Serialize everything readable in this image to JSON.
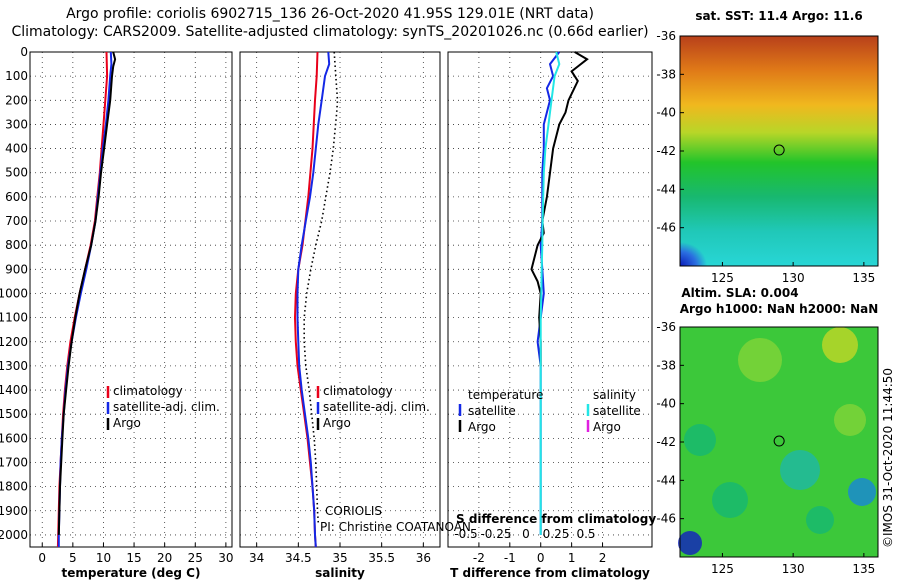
{
  "header": {
    "line1": "Argo profile: coriolis 6902715_136 26-Oct-2020 41.95S 129.01E (NRT data)",
    "line2": "Climatology: CARS2009. Satellite-adjusted climatology: synTS_20201026.nc (0.66d earlier)"
  },
  "colors": {
    "red": "#e8001a",
    "blue": "#1428e6",
    "black": "#000000",
    "cyan": "#22e6e6",
    "magenta": "#e020e0"
  },
  "chart_data": [
    {
      "type": "line",
      "id": "temperature",
      "xlabel": "temperature (deg C)",
      "xlim": [
        -2,
        31
      ],
      "ylim": [
        2050,
        0
      ],
      "xticks": [
        0,
        5,
        10,
        15,
        20,
        25,
        30
      ],
      "yticks": [
        0,
        100,
        200,
        300,
        400,
        500,
        600,
        700,
        800,
        900,
        1000,
        1100,
        1200,
        1300,
        1400,
        1500,
        1600,
        1700,
        1800,
        1900,
        2000
      ],
      "grid": true,
      "legend": [
        "climatology",
        "satellite-adj. clim.",
        "Argo"
      ],
      "series": [
        {
          "name": "climatology",
          "color": "red",
          "points": [
            [
              10.5,
              0
            ],
            [
              10.6,
              100
            ],
            [
              10.3,
              200
            ],
            [
              10,
              300
            ],
            [
              9.7,
              400
            ],
            [
              9.4,
              500
            ],
            [
              9,
              600
            ],
            [
              8.6,
              700
            ],
            [
              7.9,
              800
            ],
            [
              7,
              900
            ],
            [
              6.1,
              1000
            ],
            [
              5.3,
              1100
            ],
            [
              4.6,
              1200
            ],
            [
              4.1,
              1300
            ],
            [
              3.7,
              1400
            ],
            [
              3.4,
              1500
            ],
            [
              3.2,
              1600
            ],
            [
              3.0,
              1700
            ],
            [
              2.8,
              1800
            ],
            [
              2.7,
              1900
            ],
            [
              2.6,
              2000
            ],
            [
              2.55,
              2050
            ]
          ]
        },
        {
          "name": "satellite-adj. clim.",
          "color": "blue",
          "points": [
            [
              11.2,
              0
            ],
            [
              11.3,
              50
            ],
            [
              11.1,
              100
            ],
            [
              10.8,
              200
            ],
            [
              10.4,
              300
            ],
            [
              9.9,
              400
            ],
            [
              9.5,
              500
            ],
            [
              9.1,
              600
            ],
            [
              8.7,
              700
            ],
            [
              8.0,
              800
            ],
            [
              7.2,
              900
            ],
            [
              6.3,
              1000
            ],
            [
              5.5,
              1100
            ],
            [
              4.8,
              1200
            ],
            [
              4.2,
              1300
            ],
            [
              3.8,
              1400
            ],
            [
              3.5,
              1500
            ],
            [
              3.2,
              1600
            ],
            [
              3.0,
              1700
            ],
            [
              2.9,
              1800
            ],
            [
              2.8,
              1900
            ],
            [
              2.7,
              2000
            ],
            [
              2.7,
              2050
            ]
          ]
        },
        {
          "name": "Argo",
          "color": "black",
          "points": [
            [
              11.6,
              0
            ],
            [
              11.9,
              30
            ],
            [
              11.6,
              60
            ],
            [
              11.4,
              100
            ],
            [
              11.1,
              200
            ],
            [
              10.6,
              300
            ],
            [
              10.1,
              400
            ],
            [
              9.6,
              500
            ],
            [
              9.2,
              600
            ],
            [
              8.7,
              700
            ],
            [
              8.0,
              800
            ],
            [
              7.0,
              900
            ],
            [
              6.1,
              1000
            ],
            [
              5.4,
              1100
            ],
            [
              4.8,
              1200
            ],
            [
              4.3,
              1300
            ],
            [
              3.9,
              1400
            ],
            [
              3.5,
              1500
            ],
            [
              3.3,
              1600
            ],
            [
              3.1,
              1700
            ],
            [
              2.9,
              1800
            ],
            [
              2.8,
              1900
            ],
            [
              2.7,
              2000
            ]
          ]
        }
      ]
    },
    {
      "type": "line",
      "id": "salinity",
      "xlabel": "salinity",
      "xlim": [
        33.8,
        36.2
      ],
      "ylim": [
        2050,
        0
      ],
      "xticks": [
        34,
        34.5,
        35,
        35.5,
        36
      ],
      "grid": true,
      "legend": [
        "climatology",
        "satellite-adj. clim.",
        "Argo"
      ],
      "annotation": [
        "CORIOLIS",
        "PI: Christine COATANOAN"
      ],
      "series": [
        {
          "name": "climatology",
          "color": "red",
          "points": [
            [
              34.73,
              0
            ],
            [
              34.72,
              100
            ],
            [
              34.7,
              200
            ],
            [
              34.67,
              400
            ],
            [
              34.62,
              600
            ],
            [
              34.55,
              800
            ],
            [
              34.5,
              900
            ],
            [
              34.47,
              1000
            ],
            [
              34.46,
              1100
            ],
            [
              34.47,
              1200
            ],
            [
              34.49,
              1300
            ],
            [
              34.53,
              1400
            ],
            [
              34.57,
              1500
            ],
            [
              34.61,
              1600
            ],
            [
              34.64,
              1700
            ],
            [
              34.67,
              1800
            ],
            [
              34.69,
              1900
            ],
            [
              34.7,
              2000
            ],
            [
              34.71,
              2050
            ]
          ]
        },
        {
          "name": "satellite-adj. clim.",
          "color": "blue",
          "points": [
            [
              34.86,
              0
            ],
            [
              34.87,
              50
            ],
            [
              34.82,
              100
            ],
            [
              34.78,
              200
            ],
            [
              34.74,
              300
            ],
            [
              34.71,
              400
            ],
            [
              34.68,
              500
            ],
            [
              34.64,
              600
            ],
            [
              34.59,
              700
            ],
            [
              34.54,
              800
            ],
            [
              34.5,
              900
            ],
            [
              34.49,
              1000
            ],
            [
              34.49,
              1100
            ],
            [
              34.5,
              1200
            ],
            [
              34.51,
              1300
            ],
            [
              34.54,
              1400
            ],
            [
              34.58,
              1500
            ],
            [
              34.62,
              1600
            ],
            [
              34.65,
              1700
            ],
            [
              34.67,
              1800
            ],
            [
              34.69,
              1900
            ],
            [
              34.7,
              2000
            ],
            [
              34.71,
              2050
            ]
          ]
        },
        {
          "name": "Argo",
          "color": "black",
          "dotted": true,
          "points": [
            [
              34.93,
              0
            ],
            [
              34.95,
              100
            ],
            [
              34.97,
              200
            ],
            [
              34.96,
              250
            ],
            [
              34.92,
              400
            ],
            [
              34.88,
              500
            ],
            [
              34.83,
              600
            ],
            [
              34.78,
              700
            ],
            [
              34.71,
              800
            ],
            [
              34.65,
              900
            ],
            [
              34.6,
              1000
            ],
            [
              34.57,
              1100
            ],
            [
              34.57,
              1200
            ],
            [
              34.59,
              1300
            ],
            [
              34.63,
              1400
            ],
            [
              34.66,
              1500
            ],
            [
              34.69,
              1600
            ],
            [
              34.71,
              1700
            ],
            [
              34.72,
              1800
            ],
            [
              34.73,
              1900
            ],
            [
              34.74,
              1950
            ]
          ]
        }
      ]
    },
    {
      "type": "line",
      "id": "difference",
      "xlabel": "T difference from climatology",
      "xlabel2": "S difference from climatology",
      "xlim": [
        -3,
        3.6
      ],
      "ylim": [
        2050,
        0
      ],
      "xticks": [
        -2,
        -1,
        0,
        1,
        2
      ],
      "xticks2": [
        -0.5,
        -0.25,
        0,
        0.25,
        0.5
      ],
      "grid": true,
      "legend_temperature": {
        "title": "temperature",
        "items": [
          "satellite",
          "Argo"
        ]
      },
      "legend_salinity": {
        "title": "salinity",
        "items": [
          "satellite",
          "Argo"
        ]
      },
      "series": [
        {
          "name": "temperature satellite",
          "color": "blue",
          "points": [
            [
              0.6,
              0
            ],
            [
              0.3,
              50
            ],
            [
              0.4,
              100
            ],
            [
              0.2,
              150
            ],
            [
              0.3,
              200
            ],
            [
              0.1,
              300
            ],
            [
              0.1,
              400
            ],
            [
              0.05,
              500
            ],
            [
              0.05,
              600
            ],
            [
              0.05,
              700
            ],
            [
              0.0,
              800
            ],
            [
              0.05,
              900
            ],
            [
              0.1,
              1000
            ],
            [
              0.0,
              1100
            ],
            [
              -0.1,
              1200
            ],
            [
              0.0,
              1300
            ],
            [
              0.0,
              1400
            ],
            [
              0.0,
              1500
            ],
            [
              0,
              2000
            ]
          ]
        },
        {
          "name": "temperature Argo",
          "color": "black",
          "points": [
            [
              1.1,
              0
            ],
            [
              1.5,
              30
            ],
            [
              1.2,
              60
            ],
            [
              1.0,
              80
            ],
            [
              1.2,
              120
            ],
            [
              0.9,
              200
            ],
            [
              0.8,
              250
            ],
            [
              0.6,
              300
            ],
            [
              0.4,
              400
            ],
            [
              0.3,
              500
            ],
            [
              0.2,
              600
            ],
            [
              0.05,
              700
            ],
            [
              0.1,
              750
            ],
            [
              -0.1,
              800
            ],
            [
              -0.3,
              900
            ],
            [
              -0.1,
              950
            ],
            [
              0.0,
              1000
            ],
            [
              -0.05,
              1100
            ],
            [
              0.0,
              1200
            ],
            [
              0,
              1300
            ]
          ]
        },
        {
          "name": "salinity satellite",
          "color": "cyan",
          "points": [
            [
              0.5,
              0
            ],
            [
              0.6,
              50
            ],
            [
              0.45,
              100
            ],
            [
              0.35,
              200
            ],
            [
              0.25,
              300
            ],
            [
              0.15,
              400
            ],
            [
              0.1,
              500
            ],
            [
              0.08,
              600
            ],
            [
              0.06,
              700
            ],
            [
              0.05,
              800
            ],
            [
              0.03,
              900
            ],
            [
              0.02,
              1000
            ],
            [
              0.0,
              1100
            ],
            [
              0,
              2000
            ]
          ]
        }
      ]
    }
  ],
  "maps": [
    {
      "title": "sat. SST: 11.4 Argo: 11.6",
      "xticks": [
        "125",
        "130",
        "135"
      ],
      "yticks": [
        "-36",
        "-38",
        "-40",
        "-42",
        "-44",
        "-46"
      ],
      "marker_lon": 129.01,
      "marker_lat": -41.95
    },
    {
      "title_a": "Altim. SLA: 0.004",
      "title_b": "Argo h1000: NaN h2000: NaN",
      "xticks": [
        "125",
        "130",
        "135"
      ],
      "yticks": [
        "-36",
        "-38",
        "-40",
        "-42",
        "-44",
        "-46"
      ],
      "marker_lon": 129.01,
      "marker_lat": -41.95
    }
  ],
  "credit": "©IMOS 31-Oct-2020 11:44:50"
}
